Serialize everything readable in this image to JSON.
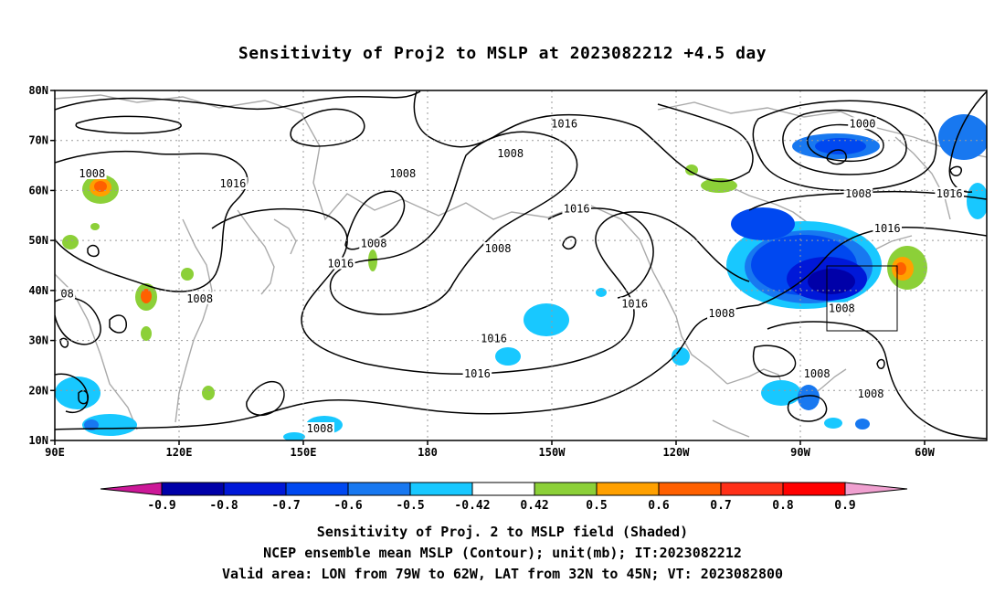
{
  "chart_data": {
    "type": "contour",
    "title": "Sensitivity of Proj2 to MSLP at 2023082212 +4.5 day",
    "x_ticks": [
      {
        "label": "90E",
        "lon": 90
      },
      {
        "label": "120E",
        "lon": 120
      },
      {
        "label": "150E",
        "lon": 150
      },
      {
        "label": "180",
        "lon": 180
      },
      {
        "label": "150W",
        "lon": 210
      },
      {
        "label": "120W",
        "lon": 240
      },
      {
        "label": "90W",
        "lon": 270
      },
      {
        "label": "60W",
        "lon": 300
      }
    ],
    "y_ticks": [
      {
        "label": "80N",
        "lat": 80
      },
      {
        "label": "70N",
        "lat": 70
      },
      {
        "label": "60N",
        "lat": 60
      },
      {
        "label": "50N",
        "lat": 50
      },
      {
        "label": "40N",
        "lat": 40
      },
      {
        "label": "30N",
        "lat": 30
      },
      {
        "label": "20N",
        "lat": 20
      },
      {
        "label": "10N",
        "lat": 10
      }
    ],
    "xlim": [
      90,
      315
    ],
    "ylim": [
      10,
      80
    ],
    "grid": true,
    "contour_labels": [
      {
        "text": "1016",
        "lon": 213,
        "lat": 73
      },
      {
        "text": "1008",
        "lon": 200,
        "lat": 67
      },
      {
        "text": "1000",
        "lon": 285,
        "lat": 73
      },
      {
        "text": "1008",
        "lon": 99,
        "lat": 63
      },
      {
        "text": "1016",
        "lon": 133,
        "lat": 61
      },
      {
        "text": "1008",
        "lon": 174,
        "lat": 63
      },
      {
        "text": "1016",
        "lon": 216,
        "lat": 56
      },
      {
        "text": "1008",
        "lon": 284,
        "lat": 59
      },
      {
        "text": "1016",
        "lon": 306,
        "lat": 59
      },
      {
        "text": "1016",
        "lon": 291,
        "lat": 52
      },
      {
        "text": "1008",
        "lon": 167,
        "lat": 49
      },
      {
        "text": "1008",
        "lon": 197,
        "lat": 48
      },
      {
        "text": "1016",
        "lon": 159,
        "lat": 45
      },
      {
        "text": "08",
        "lon": 93,
        "lat": 39
      },
      {
        "text": "1008",
        "lon": 125,
        "lat": 38
      },
      {
        "text": "1016",
        "lon": 230,
        "lat": 37
      },
      {
        "text": "1008",
        "lon": 251,
        "lat": 35
      },
      {
        "text": "1008",
        "lon": 280,
        "lat": 36
      },
      {
        "text": "1016",
        "lon": 196,
        "lat": 30
      },
      {
        "text": "1016",
        "lon": 192,
        "lat": 23
      },
      {
        "text": "1008",
        "lon": 274,
        "lat": 23
      },
      {
        "text": "1008",
        "lon": 287,
        "lat": 19
      },
      {
        "text": "1008",
        "lon": 154,
        "lat": 12
      }
    ],
    "colorbar": {
      "labels": [
        "-0.9",
        "-0.8",
        "-0.7",
        "-0.6",
        "-0.5",
        "-0.42",
        "0.42",
        "0.5",
        "0.6",
        "0.7",
        "0.8",
        "0.9"
      ],
      "colors": [
        "#0000a8",
        "#0018d8",
        "#0048f0",
        "#1878f0",
        "#18c8ff",
        "#ffffff",
        "#8cd038",
        "#ffa000",
        "#ff6000",
        "#ff3018",
        "#ff0000"
      ],
      "below_color": "#cc1898",
      "above_color": "#f0a0d0"
    }
  },
  "captions": {
    "line1": "Sensitivity of Proj. 2 to MSLP field (Shaded)",
    "line2": "NCEP ensemble mean MSLP (Contour); unit(mb); IT:2023082212",
    "line3": "Valid area: LON from 79W to 62W, LAT from 32N to 45N; VT: 2023082800"
  }
}
